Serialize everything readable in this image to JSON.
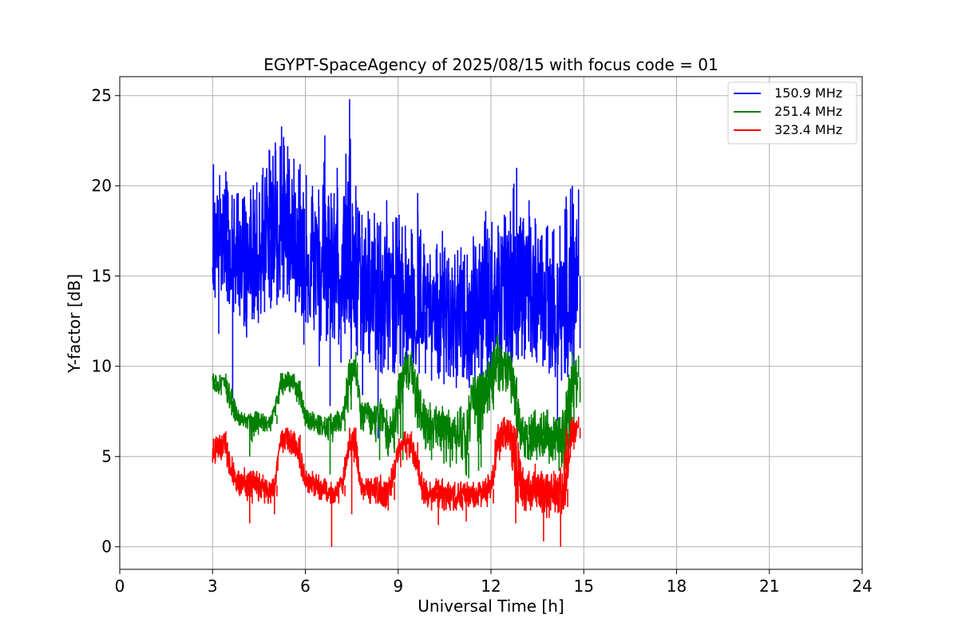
{
  "chart_data": {
    "type": "line",
    "title": "EGYPT-SpaceAgency of 2025/08/15 with focus code = 01",
    "xlabel": "Universal Time [h]",
    "ylabel": "Y-factor [dB]",
    "xlim": [
      0,
      24
    ],
    "ylim": [
      -1.25,
      26.05
    ],
    "xticks": [
      0,
      3,
      6,
      9,
      12,
      15,
      18,
      21,
      24
    ],
    "xtick_labels": [
      "0",
      "3",
      "6",
      "9",
      "12",
      "15",
      "18",
      "21",
      "24"
    ],
    "yticks": [
      0,
      5,
      10,
      15,
      20,
      25
    ],
    "ytick_labels": [
      "0",
      "5",
      "10",
      "15",
      "20",
      "25"
    ],
    "grid": true,
    "legend_position": "top-right",
    "series": [
      {
        "name": "150.9 MHz",
        "color": "#0000ff",
        "x": [
          3.0,
          3.2,
          3.4,
          3.6,
          3.8,
          4.0,
          4.2,
          4.4,
          4.6,
          4.8,
          5.0,
          5.2,
          5.4,
          5.6,
          5.8,
          6.0,
          6.2,
          6.4,
          6.6,
          6.8,
          7.0,
          7.2,
          7.4,
          7.6,
          7.8,
          8.0,
          8.2,
          8.4,
          8.6,
          8.8,
          9.0,
          9.2,
          9.4,
          9.6,
          9.8,
          10.0,
          10.2,
          10.4,
          10.6,
          10.8,
          11.0,
          11.2,
          11.4,
          11.6,
          11.8,
          12.0,
          12.2,
          12.4,
          12.6,
          12.8,
          13.0,
          13.2,
          13.4,
          13.6,
          13.8,
          14.0,
          14.2,
          14.4,
          14.6,
          14.8
        ],
        "mean": [
          16.8,
          17.5,
          17.0,
          16.0,
          15.8,
          15.5,
          15.8,
          16.2,
          16.5,
          17.0,
          17.2,
          17.6,
          17.4,
          17.0,
          16.8,
          16.2,
          15.8,
          15.4,
          15.2,
          15.0,
          15.2,
          15.0,
          15.4,
          14.8,
          14.4,
          14.2,
          14.0,
          13.8,
          13.6,
          13.6,
          14.2,
          14.0,
          13.6,
          13.2,
          13.0,
          12.8,
          12.8,
          12.6,
          12.6,
          12.8,
          12.8,
          12.6,
          12.6,
          13.0,
          13.4,
          13.4,
          13.4,
          13.6,
          13.8,
          14.0,
          14.2,
          14.4,
          14.2,
          13.8,
          13.6,
          13.4,
          13.2,
          13.0,
          13.6,
          15.0
        ],
        "max": [
          21.2,
          20.6,
          20.8,
          19.5,
          19.6,
          19.4,
          19.8,
          20.2,
          21.0,
          22.0,
          22.4,
          23.3,
          22.2,
          21.5,
          21.2,
          20.6,
          20.0,
          19.8,
          22.8,
          19.6,
          21.0,
          18.2,
          24.8,
          20.0,
          18.4,
          18.6,
          18.5,
          18.0,
          19.2,
          18.0,
          18.4,
          17.8,
          17.6,
          19.6,
          16.8,
          16.2,
          16.5,
          17.5,
          16.0,
          16.2,
          16.6,
          16.2,
          17.2,
          16.8,
          18.6,
          18.0,
          17.8,
          18.4,
          18.6,
          21.0,
          18.0,
          19.2,
          18.2,
          17.2,
          17.8,
          17.6,
          17.8,
          19.4,
          20.0,
          19.8
        ],
        "min": [
          13.8,
          14.2,
          13.6,
          13.0,
          12.8,
          12.2,
          12.6,
          12.4,
          13.0,
          13.2,
          13.4,
          13.8,
          13.6,
          13.0,
          12.8,
          12.4,
          12.0,
          11.4,
          11.4,
          11.6,
          11.2,
          11.8,
          10.4,
          10.6,
          10.8,
          10.2,
          9.8,
          9.6,
          9.8,
          9.6,
          10.0,
          10.2,
          9.8,
          9.6,
          9.6,
          9.2,
          9.6,
          9.0,
          9.4,
          8.8,
          9.4,
          9.2,
          9.0,
          9.2,
          9.4,
          9.6,
          9.8,
          10.0,
          10.2,
          10.4,
          10.4,
          10.8,
          10.2,
          10.0,
          9.6,
          9.4,
          9.2,
          9.4,
          10.0,
          11.0
        ],
        "spikes_down": [
          [
            3.2,
            11.8
          ],
          [
            3.65,
            8.2
          ],
          [
            4.1,
            11.6
          ],
          [
            5.95,
            11.2
          ],
          [
            6.45,
            10.0
          ],
          [
            6.8,
            7.8
          ],
          [
            7.15,
            10.2
          ],
          [
            7.85,
            8.4
          ],
          [
            8.35,
            6.0
          ],
          [
            9.15,
            7.6
          ],
          [
            11.3,
            8.8
          ],
          [
            14.15,
            7.0
          ]
        ]
      },
      {
        "name": "251.4 MHz",
        "color": "#008000",
        "x": [
          3.0,
          3.2,
          3.4,
          3.6,
          3.8,
          4.0,
          4.2,
          4.4,
          4.6,
          4.8,
          5.0,
          5.2,
          5.4,
          5.6,
          5.8,
          6.0,
          6.2,
          6.4,
          6.6,
          6.8,
          7.0,
          7.2,
          7.4,
          7.6,
          7.8,
          8.0,
          8.2,
          8.4,
          8.6,
          8.8,
          9.0,
          9.2,
          9.4,
          9.6,
          9.8,
          10.0,
          10.2,
          10.4,
          10.6,
          10.8,
          11.0,
          11.2,
          11.4,
          11.6,
          11.8,
          12.0,
          12.2,
          12.4,
          12.6,
          12.8,
          13.0,
          13.2,
          13.4,
          13.6,
          13.8,
          14.0,
          14.2,
          14.4,
          14.6,
          14.8
        ],
        "mean": [
          9.0,
          8.9,
          9.1,
          8.2,
          7.3,
          7.0,
          7.0,
          7.0,
          6.9,
          6.8,
          7.3,
          9.0,
          9.2,
          9.0,
          8.6,
          7.2,
          7.0,
          6.8,
          6.8,
          6.9,
          7.0,
          7.1,
          9.6,
          10.2,
          7.4,
          7.3,
          7.2,
          7.4,
          6.3,
          6.2,
          8.6,
          10.2,
          10.0,
          8.6,
          7.0,
          7.0,
          7.0,
          7.2,
          6.4,
          6.0,
          6.4,
          5.2,
          8.6,
          8.8,
          9.0,
          9.2,
          10.6,
          10.0,
          10.0,
          8.2,
          6.2,
          6.2,
          6.2,
          6.0,
          6.2,
          6.0,
          6.0,
          6.2,
          9.0,
          9.4
        ],
        "max": [
          9.6,
          9.5,
          9.6,
          8.8,
          7.6,
          7.4,
          7.4,
          7.5,
          7.4,
          7.2,
          7.8,
          9.6,
          9.7,
          9.6,
          9.2,
          7.6,
          7.5,
          7.3,
          7.2,
          7.4,
          7.5,
          7.6,
          10.4,
          10.8,
          8.0,
          8.0,
          7.8,
          8.2,
          7.6,
          7.4,
          9.6,
          10.8,
          10.8,
          9.6,
          8.2,
          8.0,
          7.8,
          7.8,
          7.6,
          7.2,
          7.8,
          7.6,
          9.4,
          9.6,
          9.8,
          10.8,
          11.8,
          10.8,
          10.8,
          9.4,
          7.2,
          7.2,
          7.6,
          7.4,
          7.6,
          7.2,
          7.2,
          8.6,
          10.8,
          10.6
        ],
        "min": [
          8.6,
          8.4,
          8.4,
          7.2,
          6.8,
          6.6,
          5.8,
          6.2,
          6.4,
          6.4,
          6.8,
          8.4,
          8.6,
          8.4,
          7.8,
          6.6,
          6.4,
          6.2,
          6.2,
          5.8,
          6.4,
          6.4,
          7.6,
          9.4,
          6.4,
          6.6,
          5.8,
          6.4,
          5.0,
          5.2,
          6.0,
          8.8,
          8.6,
          6.6,
          5.4,
          4.8,
          5.6,
          4.6,
          4.4,
          4.6,
          4.8,
          3.8,
          6.8,
          4.4,
          7.4,
          7.6,
          8.6,
          8.6,
          8.6,
          6.4,
          5.0,
          4.8,
          4.8,
          5.0,
          4.6,
          4.8,
          4.4,
          4.0,
          6.0,
          8.0
        ],
        "spikes_down": [
          [
            4.2,
            5.0
          ],
          [
            6.8,
            4.0
          ],
          [
            8.4,
            4.8
          ],
          [
            9.15,
            4.8
          ],
          [
            11.2,
            4.0
          ],
          [
            11.6,
            4.2
          ],
          [
            14.2,
            4.2
          ]
        ]
      },
      {
        "name": "323.4 MHz",
        "color": "#ff0000",
        "x": [
          3.0,
          3.2,
          3.4,
          3.6,
          3.8,
          4.0,
          4.2,
          4.4,
          4.6,
          4.8,
          5.0,
          5.2,
          5.4,
          5.6,
          5.8,
          6.0,
          6.2,
          6.4,
          6.6,
          6.8,
          7.0,
          7.2,
          7.4,
          7.6,
          7.8,
          8.0,
          8.2,
          8.4,
          8.6,
          8.8,
          9.0,
          9.2,
          9.4,
          9.6,
          9.8,
          10.0,
          10.2,
          10.4,
          10.6,
          10.8,
          11.0,
          11.2,
          11.4,
          11.6,
          11.8,
          12.0,
          12.2,
          12.4,
          12.6,
          12.8,
          13.0,
          13.2,
          13.4,
          13.6,
          13.8,
          14.0,
          14.2,
          14.4,
          14.6,
          14.8
        ],
        "mean": [
          5.2,
          5.6,
          5.8,
          4.2,
          3.8,
          3.6,
          3.4,
          3.4,
          3.2,
          3.0,
          3.4,
          5.8,
          6.0,
          5.6,
          5.2,
          3.6,
          3.4,
          3.4,
          3.2,
          3.0,
          3.0,
          3.4,
          5.8,
          5.6,
          3.2,
          3.2,
          3.0,
          3.2,
          2.8,
          3.6,
          5.2,
          5.6,
          5.6,
          4.8,
          3.0,
          2.8,
          3.0,
          3.0,
          2.8,
          2.8,
          2.8,
          2.8,
          3.0,
          3.0,
          3.0,
          3.2,
          5.8,
          6.2,
          6.2,
          5.8,
          3.0,
          3.0,
          3.2,
          3.2,
          3.0,
          3.0,
          3.0,
          3.2,
          6.0,
          6.6
        ],
        "max": [
          6.0,
          6.2,
          6.4,
          5.0,
          4.2,
          4.4,
          4.2,
          4.2,
          4.0,
          3.6,
          4.0,
          6.4,
          6.6,
          6.4,
          6.2,
          4.2,
          4.2,
          4.0,
          3.8,
          3.6,
          3.6,
          4.0,
          6.6,
          6.6,
          3.8,
          3.8,
          3.8,
          4.0,
          3.6,
          4.6,
          6.0,
          6.4,
          6.4,
          5.8,
          3.8,
          3.6,
          3.8,
          3.8,
          3.6,
          3.6,
          3.6,
          3.6,
          3.6,
          3.6,
          3.8,
          4.2,
          6.8,
          7.2,
          7.0,
          6.6,
          4.4,
          4.2,
          4.6,
          4.2,
          4.0,
          4.2,
          4.0,
          6.6,
          7.2,
          7.2
        ],
        "min": [
          4.6,
          4.8,
          5.0,
          3.4,
          2.8,
          2.8,
          2.4,
          2.6,
          2.4,
          2.4,
          2.8,
          5.2,
          5.4,
          5.0,
          4.4,
          3.0,
          2.8,
          2.6,
          2.6,
          2.4,
          2.4,
          2.8,
          5.0,
          4.6,
          2.6,
          2.4,
          2.4,
          2.4,
          2.0,
          2.6,
          4.4,
          4.8,
          4.8,
          3.8,
          2.4,
          2.0,
          2.2,
          2.0,
          2.0,
          2.0,
          2.0,
          2.2,
          2.2,
          2.2,
          2.2,
          2.4,
          4.8,
          5.4,
          5.4,
          2.4,
          2.0,
          2.0,
          2.2,
          2.0,
          1.6,
          2.0,
          1.8,
          2.2,
          5.4,
          6.0
        ],
        "spikes_down": [
          [
            4.2,
            1.3
          ],
          [
            5.0,
            1.8
          ],
          [
            6.85,
            0.0
          ],
          [
            7.5,
            1.8
          ],
          [
            10.3,
            1.2
          ],
          [
            11.2,
            1.4
          ],
          [
            12.8,
            1.3
          ],
          [
            13.7,
            0.3
          ],
          [
            14.25,
            0.0
          ]
        ]
      }
    ]
  }
}
